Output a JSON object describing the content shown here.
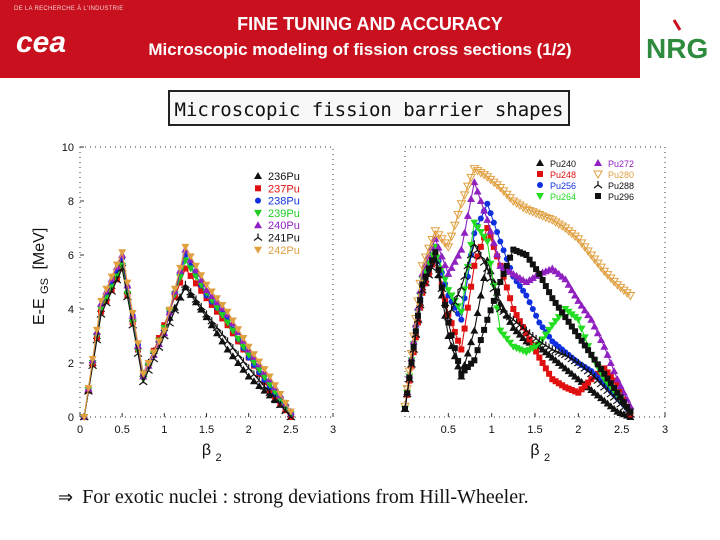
{
  "header": {
    "logo_caption": "DE LA RECHERCHE À L'INDUSTRIE",
    "cea_logo_text": "cea",
    "title_line1": "FINE TUNING AND ACCURACY",
    "title_line2": "Microscopic modeling of fission cross sections (1/2)",
    "nrg_logo_text": "NRG",
    "band_color": "#c8101e",
    "nrg_color": "#2e8b3e"
  },
  "panel_title": "Microscopic fission barrier shapes",
  "y_axis_label": "E-E",
  "y_axis_sub": "GS",
  "y_axis_unit": "[MeV]",
  "footnote": {
    "arrow": "⇒",
    "text": "For exotic nuclei : strong deviations from Hill-Wheeler."
  },
  "chart_data": [
    {
      "type": "line",
      "xlabel": "β",
      "xlabel_sub": "2",
      "ylabel": "E-E_GS [MeV]",
      "xlim": [
        0,
        3
      ],
      "ylim": [
        0,
        10
      ],
      "xticks": [
        "0",
        "0.5",
        "1",
        "1.5",
        "2",
        "2.5",
        "3"
      ],
      "yticks": [
        "0",
        "2",
        "4",
        "6",
        "8",
        "10"
      ],
      "legend_position": "top-right",
      "x": [
        0.05,
        0.25,
        0.5,
        0.75,
        1.0,
        1.25,
        1.5,
        1.75,
        2.0,
        2.25,
        2.5
      ],
      "series": [
        {
          "name": "236Pu",
          "color": "#111111",
          "marker": "triangle",
          "values": [
            0.0,
            4.0,
            5.7,
            1.6,
            3.3,
            4.8,
            3.7,
            2.5,
            1.5,
            0.8,
            0.1
          ]
        },
        {
          "name": "237Pu",
          "color": "#e01010",
          "marker": "square",
          "values": [
            0.0,
            3.9,
            5.5,
            1.5,
            3.4,
            5.5,
            4.4,
            3.4,
            2.2,
            1.0,
            0.0
          ]
        },
        {
          "name": "238Pu",
          "color": "#1030e0",
          "marker": "circle",
          "values": [
            0.0,
            4.1,
            5.9,
            1.6,
            3.2,
            6.0,
            4.5,
            3.6,
            2.2,
            1.1,
            0.1
          ]
        },
        {
          "name": "239Pu",
          "color": "#22cc22",
          "marker": "triangle-down",
          "values": [
            0.0,
            4.0,
            5.6,
            1.4,
            3.3,
            5.8,
            4.6,
            3.5,
            2.3,
            1.2,
            0.1
          ]
        },
        {
          "name": "240Pu",
          "color": "#9020c0",
          "marker": "triangle",
          "values": [
            0.0,
            4.2,
            6.0,
            1.5,
            3.1,
            6.2,
            4.7,
            3.8,
            2.5,
            1.4,
            0.2
          ]
        },
        {
          "name": "241Pu",
          "color": "#111111",
          "marker": "tri",
          "values": [
            0.0,
            3.8,
            5.5,
            1.3,
            3.0,
            4.9,
            3.8,
            2.8,
            1.8,
            0.9,
            0.0
          ]
        },
        {
          "name": "242Pu",
          "color": "#e0a040",
          "marker": "triangle-down",
          "values": [
            0.0,
            4.3,
            6.1,
            1.6,
            3.2,
            6.3,
            4.9,
            3.9,
            2.6,
            1.5,
            0.2
          ]
        }
      ]
    },
    {
      "type": "line",
      "xlabel": "β",
      "xlabel_sub": "2",
      "xlim": [
        0,
        3
      ],
      "ylim": [
        0,
        10
      ],
      "xticks": [
        "0.5",
        "1",
        "1.5",
        "2",
        "2.5",
        "3"
      ],
      "legend_position": "top-right",
      "x": [
        0.0,
        0.1,
        0.2,
        0.35,
        0.5,
        0.65,
        0.8,
        0.95,
        1.1,
        1.25,
        1.4,
        1.55,
        1.7,
        1.85,
        2.0,
        2.15,
        2.3,
        2.45,
        2.6
      ],
      "series": [
        {
          "name": "Pu240",
          "color": "#111111",
          "marker": "triangle",
          "values": [
            0.3,
            2.5,
            4.8,
            6.0,
            3.0,
            1.5,
            3.2,
            5.8,
            4.2,
            3.3,
            2.8,
            2.6,
            2.2,
            1.8,
            1.4,
            1.0,
            0.6,
            0.2,
            0.0
          ]
        },
        {
          "name": "Pu248",
          "color": "#e01010",
          "marker": "square",
          "values": [
            0.3,
            2.4,
            4.6,
            6.0,
            3.8,
            2.5,
            5.6,
            7.0,
            5.6,
            4.0,
            3.1,
            2.2,
            1.4,
            1.1,
            0.9,
            1.4,
            1.8,
            1.2,
            0.1
          ]
        },
        {
          "name": "Pu256",
          "color": "#1030e0",
          "marker": "circle",
          "values": [
            0.3,
            2.6,
            5.0,
            6.2,
            4.5,
            3.6,
            6.8,
            7.9,
            6.5,
            5.2,
            4.5,
            3.5,
            2.8,
            2.4,
            2.0,
            1.7,
            1.2,
            0.7,
            0.2
          ]
        },
        {
          "name": "Pu264",
          "color": "#22dd22",
          "marker": "triangle-down",
          "values": [
            0.3,
            2.7,
            5.1,
            6.3,
            4.7,
            3.9,
            7.2,
            6.5,
            3.2,
            2.6,
            2.4,
            2.7,
            3.4,
            4.0,
            3.6,
            2.3,
            1.4,
            0.8,
            0.2
          ]
        },
        {
          "name": "Pu272",
          "color": "#9020c0",
          "marker": "triangle",
          "values": [
            0.3,
            2.8,
            5.3,
            6.6,
            5.3,
            6.2,
            8.7,
            7.3,
            5.6,
            5.3,
            5.0,
            5.3,
            5.5,
            5.1,
            4.3,
            3.6,
            2.6,
            1.4,
            0.4
          ]
        },
        {
          "name": "Pu280",
          "color": "#e0a040",
          "marker": "tri-open",
          "values": [
            0.4,
            3.0,
            5.6,
            6.9,
            6.3,
            7.9,
            9.2,
            8.9,
            8.5,
            8.0,
            7.7,
            7.5,
            7.3,
            7.0,
            6.6,
            6.0,
            5.4,
            4.9,
            4.5
          ]
        },
        {
          "name": "Pu288",
          "color": "#111111",
          "marker": "tri",
          "values": [
            0.3,
            2.5,
            4.7,
            5.8,
            3.7,
            4.8,
            6.4,
            5.5,
            4.0,
            3.6,
            3.2,
            2.8,
            2.5,
            2.3,
            2.0,
            1.6,
            1.1,
            0.6,
            0.1
          ]
        },
        {
          "name": "Pu296",
          "color": "#111111",
          "marker": "square",
          "values": [
            0.3,
            2.6,
            4.9,
            6.1,
            3.5,
            1.6,
            2.1,
            3.6,
            5.0,
            6.2,
            6.0,
            5.3,
            4.4,
            3.7,
            3.0,
            2.3,
            1.6,
            0.9,
            0.2
          ]
        }
      ]
    }
  ]
}
